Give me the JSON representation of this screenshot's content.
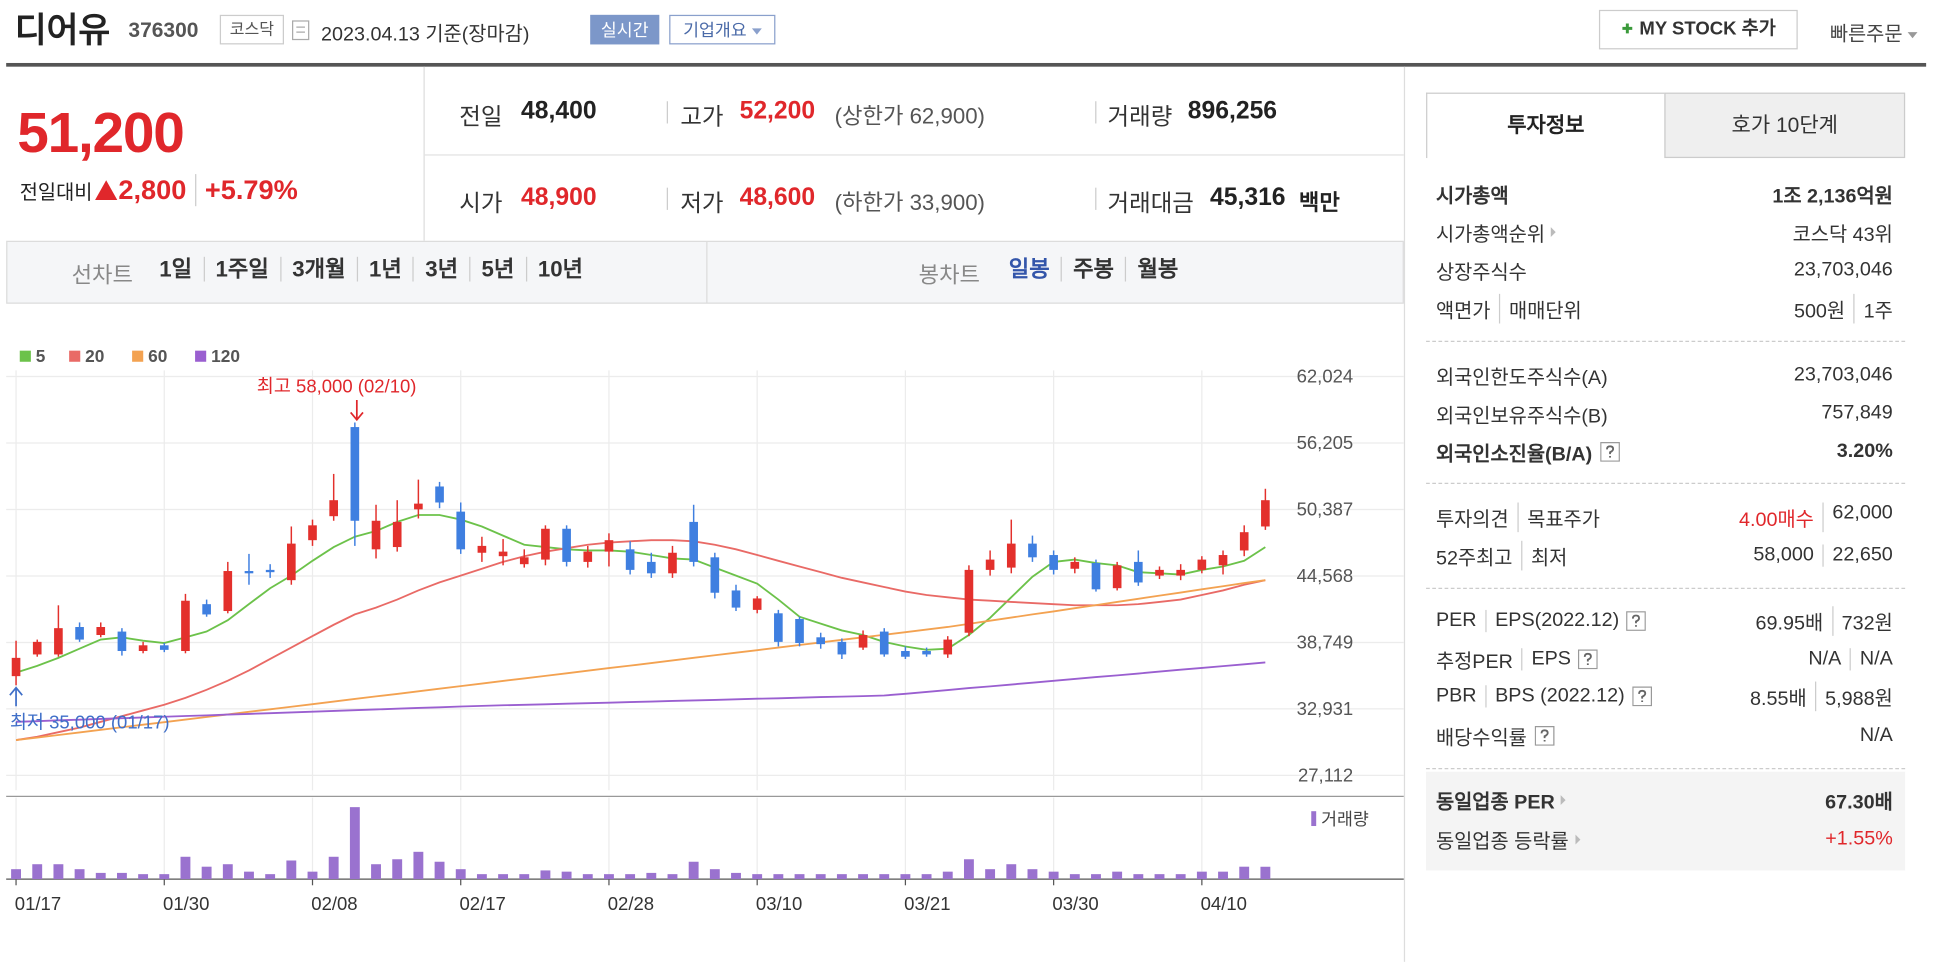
{
  "header": {
    "name": "디어유",
    "code": "376300",
    "market": "코스닥",
    "date": "2023.04.13 기준(장마감)",
    "realtime": "실시간",
    "company": "기업개요",
    "mystock": "MY STOCK 추가",
    "quick": "빠른주문"
  },
  "quote": {
    "price": "51,200",
    "change_label": "전일대비",
    "change": "2,800",
    "change_pct": "+5.79%",
    "prev": {
      "label": "전일",
      "value": "48,400"
    },
    "high": {
      "label": "고가",
      "value": "52,200",
      "note": "(상한가 62,900)"
    },
    "volume": {
      "label": "거래량",
      "value": "896,256"
    },
    "open": {
      "label": "시가",
      "value": "48,900"
    },
    "low": {
      "label": "저가",
      "value": "48,600",
      "note": "(하한가 33,900)"
    },
    "amount": {
      "label": "거래대금",
      "value": "45,316",
      "unit": "백만"
    }
  },
  "tabs": {
    "line_label": "선차트",
    "line": [
      "1일",
      "1주일",
      "3개월",
      "1년",
      "3년",
      "5년",
      "10년"
    ],
    "candle_label": "봉차트",
    "candle": [
      "일봉",
      "주봉",
      "월봉"
    ]
  },
  "chart_data": {
    "type": "candlestick",
    "categories": [
      "01/17",
      null,
      null,
      null,
      null,
      null,
      null,
      "01/30",
      null,
      null,
      null,
      null,
      null,
      null,
      "02/08",
      null,
      null,
      null,
      null,
      null,
      null,
      "02/17",
      null,
      null,
      null,
      null,
      null,
      null,
      "02/28",
      null,
      null,
      null,
      null,
      null,
      null,
      "03/10",
      null,
      null,
      null,
      null,
      null,
      null,
      "03/21",
      null,
      null,
      null,
      null,
      null,
      null,
      "03/30",
      null,
      null,
      null,
      null,
      null,
      null,
      "04/10",
      null,
      null,
      null
    ],
    "open": [
      35800,
      37700,
      37700,
      40100,
      39400,
      39700,
      38000,
      38500,
      38000,
      42100,
      41500,
      45000,
      45100,
      44200,
      47700,
      49800,
      57600,
      46900,
      47100,
      50400,
      52400,
      50200,
      46600,
      46300,
      45600,
      46000,
      48700,
      45800,
      46700,
      46900,
      45800,
      44800,
      49300,
      46200,
      43300,
      41600,
      41300,
      40800,
      39200,
      38800,
      38300,
      39700,
      38000,
      38000,
      37700,
      39600,
      45100,
      45300,
      47400,
      46400,
      45200,
      45700,
      43500,
      45800,
      44600,
      44600,
      45100,
      45500,
      46800,
      48900
    ],
    "high": [
      38900,
      39000,
      42000,
      40500,
      40500,
      40000,
      38800,
      38700,
      43000,
      42500,
      45800,
      46500,
      45600,
      48900,
      49500,
      53500,
      58000,
      50800,
      51200,
      53000,
      52800,
      51000,
      48000,
      47800,
      46900,
      49000,
      49000,
      47200,
      48300,
      47600,
      46600,
      47200,
      50800,
      46600,
      43800,
      42800,
      41600,
      41000,
      39600,
      39100,
      39800,
      40000,
      38400,
      38300,
      39300,
      45500,
      46800,
      49500,
      48100,
      46800,
      46200,
      46000,
      45800,
      46800,
      45400,
      45600,
      46300,
      46800,
      49000,
      52200
    ],
    "low": [
      35000,
      37500,
      37500,
      38800,
      39200,
      37600,
      37800,
      37900,
      37800,
      41000,
      41300,
      43800,
      44400,
      43800,
      47200,
      49400,
      47200,
      46100,
      46700,
      49600,
      50500,
      46500,
      45800,
      45500,
      45300,
      45500,
      45400,
      45300,
      45400,
      44700,
      44400,
      44400,
      45400,
      42600,
      41500,
      41300,
      38400,
      38400,
      38200,
      37300,
      38100,
      37500,
      37300,
      37500,
      37400,
      39300,
      44600,
      44800,
      45800,
      44700,
      44800,
      43200,
      43300,
      43700,
      44300,
      44200,
      44800,
      44700,
      46300,
      48600
    ],
    "close": [
      37400,
      38800,
      40000,
      39000,
      40100,
      38000,
      38500,
      38100,
      42400,
      41200,
      45000,
      44800,
      44900,
      47400,
      49000,
      51200,
      49400,
      49400,
      49300,
      50900,
      51000,
      46900,
      47200,
      46700,
      46200,
      48700,
      45800,
      46700,
      47700,
      45100,
      44800,
      46600,
      45800,
      43100,
      41800,
      42600,
      38800,
      38700,
      38600,
      37700,
      39400,
      37700,
      37500,
      37700,
      39000,
      45100,
      46000,
      47400,
      46200,
      45100,
      45800,
      43400,
      45500,
      44000,
      45100,
      45100,
      46000,
      46400,
      48400,
      51200
    ],
    "up_color": "#e3302c",
    "down_color": "#3f7fe0",
    "ylim": [
      26000,
      63100
    ],
    "yticks": [
      {
        "value": 62024,
        "label": "62,024"
      },
      {
        "value": 56205,
        "label": "56,205"
      },
      {
        "value": 50387,
        "label": "50,387"
      },
      {
        "value": 44568,
        "label": "44,568"
      },
      {
        "value": 38749,
        "label": "38,749"
      },
      {
        "value": 32931,
        "label": "32,931"
      },
      {
        "value": 27112,
        "label": "27,112"
      }
    ],
    "grid": true,
    "series": [
      {
        "name": "5",
        "color": "#6cc24a",
        "values": [
          36100,
          36700,
          37400,
          38200,
          39000,
          39200,
          38900,
          38700,
          39200,
          39700,
          40700,
          42100,
          43500,
          44600,
          45900,
          47100,
          48000,
          48500,
          49300,
          49900,
          49900,
          49500,
          48900,
          48100,
          47300,
          47100,
          46900,
          46800,
          46800,
          46700,
          46400,
          46100,
          46000,
          45300,
          44600,
          43900,
          42500,
          41000,
          40400,
          39800,
          39400,
          38800,
          38400,
          38100,
          38200,
          39400,
          40900,
          42700,
          44500,
          45800,
          46000,
          45700,
          45500,
          44900,
          44800,
          44700,
          45100,
          45400,
          45900,
          47100
        ]
      },
      {
        "name": "20",
        "color": "#e96a66",
        "values": [
          30200,
          30500,
          30900,
          31300,
          31800,
          32300,
          32800,
          33300,
          33900,
          34600,
          35400,
          36300,
          37300,
          38300,
          39300,
          40300,
          41200,
          41800,
          42500,
          43300,
          44000,
          44600,
          45200,
          45800,
          46300,
          46700,
          47000,
          47300,
          47500,
          47600,
          47700,
          47700,
          47600,
          47300,
          46900,
          46400,
          45900,
          45400,
          44900,
          44400,
          44000,
          43600,
          43200,
          42900,
          42700,
          42500,
          42400,
          42300,
          42200,
          42100,
          42000,
          42000,
          42000,
          42100,
          42300,
          42500,
          42900,
          43300,
          43800,
          44200
        ]
      },
      {
        "name": "60",
        "color": "#f3a251",
        "values": [
          30200,
          30425,
          30650,
          30875,
          31100,
          31325,
          31550,
          31775,
          32000,
          32225,
          32450,
          32675,
          32900,
          33125,
          33350,
          33575,
          33800,
          34025,
          34250,
          34475,
          34700,
          34925,
          35150,
          35375,
          35600,
          35825,
          36050,
          36275,
          36500,
          36725,
          36950,
          37175,
          37400,
          37625,
          37850,
          38075,
          38300,
          38525,
          38750,
          38975,
          39200,
          39425,
          39650,
          39875,
          40100,
          40370,
          40650,
          40920,
          41200,
          41470,
          41750,
          42020,
          42300,
          42570,
          42850,
          43120,
          43400,
          43670,
          43950,
          44200
        ]
      },
      {
        "name": "120",
        "color": "#9a5fd0",
        "values": [
          31800,
          31860,
          31930,
          31990,
          32050,
          32120,
          32180,
          32250,
          32310,
          32370,
          32440,
          32500,
          32560,
          32630,
          32690,
          32750,
          32820,
          32880,
          32950,
          33010,
          33070,
          33140,
          33200,
          33250,
          33290,
          33340,
          33390,
          33440,
          33480,
          33530,
          33580,
          33630,
          33670,
          33720,
          33770,
          33820,
          33860,
          33910,
          33960,
          34010,
          34050,
          34100,
          34260,
          34420,
          34580,
          34750,
          34910,
          35070,
          35230,
          35390,
          35550,
          35710,
          35870,
          36030,
          36200,
          36360,
          36520,
          36680,
          36840,
          37000
        ]
      }
    ],
    "volume": {
      "name": "거래량",
      "color": "#9a72cf",
      "ylim": [
        0,
        6000000
      ],
      "values": [
        720000,
        1080000,
        1080000,
        720000,
        450000,
        450000,
        360000,
        360000,
        1620000,
        900000,
        1080000,
        540000,
        360000,
        1350000,
        540000,
        1620000,
        5220000,
        1080000,
        1440000,
        1980000,
        1260000,
        720000,
        360000,
        360000,
        360000,
        630000,
        540000,
        360000,
        360000,
        360000,
        450000,
        360000,
        1260000,
        720000,
        450000,
        360000,
        360000,
        360000,
        360000,
        360000,
        360000,
        360000,
        360000,
        360000,
        540000,
        1440000,
        720000,
        1080000,
        720000,
        540000,
        360000,
        360000,
        540000,
        360000,
        360000,
        360000,
        540000,
        540000,
        900000,
        896256
      ]
    },
    "annotations": [
      "최고 58,000 (02/10)",
      "최저 35,000 (01/17)"
    ]
  },
  "info": {
    "tabs": [
      "투자정보",
      "호가 10단계"
    ],
    "rows": [
      {
        "label": [
          "시가총액"
        ],
        "value": [
          "1조 2,136억원"
        ]
      },
      {
        "label": [
          "시가총액순위"
        ],
        "value": [
          "코스닥 43위"
        ]
      },
      {
        "label": [
          "상장주식수"
        ],
        "value": [
          "23,703,046"
        ]
      },
      {
        "label": [
          "액면가",
          "매매단위"
        ],
        "value": [
          "500원",
          "1주"
        ]
      },
      {
        "label": [
          "외국인한도주식수(A)"
        ],
        "value": [
          "23,703,046"
        ]
      },
      {
        "label": [
          "외국인보유주식수(B)"
        ],
        "value": [
          "757,849"
        ]
      },
      {
        "label": [
          "외국인소진율(B/A)"
        ],
        "value": [
          "3.20%"
        ]
      },
      {
        "label": [
          "투자의견",
          "목표주가"
        ],
        "value": [
          "4.00매수",
          "62,000"
        ]
      },
      {
        "label": [
          "52주최고",
          "최저"
        ],
        "value": [
          "58,000",
          "22,650"
        ]
      },
      {
        "label": [
          "PER",
          "EPS(2022.12)"
        ],
        "value": [
          "69.95배",
          "732원"
        ]
      },
      {
        "label": [
          "추정PER",
          "EPS"
        ],
        "value": [
          "N/A",
          "N/A"
        ]
      },
      {
        "label": [
          "PBR",
          "BPS (2022.12)"
        ],
        "value": [
          "8.55배",
          "5,988원"
        ]
      },
      {
        "label": [
          "배당수익률"
        ],
        "value": [
          "N/A"
        ]
      },
      {
        "label": [
          "동일업종 PER"
        ],
        "value": [
          "67.30배"
        ]
      },
      {
        "label": [
          "동일업종 등락률"
        ],
        "value": [
          "+1.55%"
        ]
      }
    ]
  }
}
